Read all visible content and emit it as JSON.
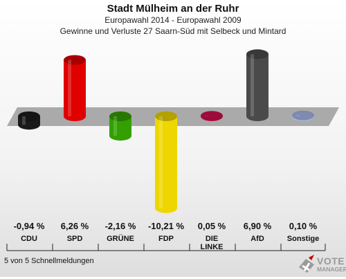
{
  "title": "Stadt Mülheim an der Ruhr",
  "subtitle": "Europawahl 2014 - Europawahl 2009",
  "subtitle2": "Gewinne und Verluste 27 Saarn-Süd mit Selbeck und Mintard",
  "status": "5 von 5 Schnellmeldungen",
  "logo": {
    "line1": "VOTE",
    "line2": "MANAGER",
    "icon": "ballot-cross-icon"
  },
  "chart_data": {
    "type": "bar",
    "categories": [
      "CDU",
      "SPD",
      "GRÜNE",
      "FDP",
      "DIE LINKE",
      "AfD",
      "Sonstige"
    ],
    "category_labels": [
      "CDU",
      "SPD",
      "GRÜNE",
      "FDP",
      "DIE\nLINKE",
      "AfD",
      "Sonstige"
    ],
    "values": [
      -0.94,
      6.26,
      -2.16,
      -10.21,
      0.05,
      6.9,
      0.1
    ],
    "value_labels": [
      "-0,94 %",
      "6,26 %",
      "-2,16 %",
      "-10,21 %",
      "0,05 %",
      "6,90 %",
      "0,10 %"
    ],
    "colors": [
      "#1a1a1a",
      "#e00000",
      "#33a000",
      "#eed700",
      "#d0104f",
      "#4a4a4a",
      "#a8b8e8"
    ],
    "baseline": 0
  }
}
